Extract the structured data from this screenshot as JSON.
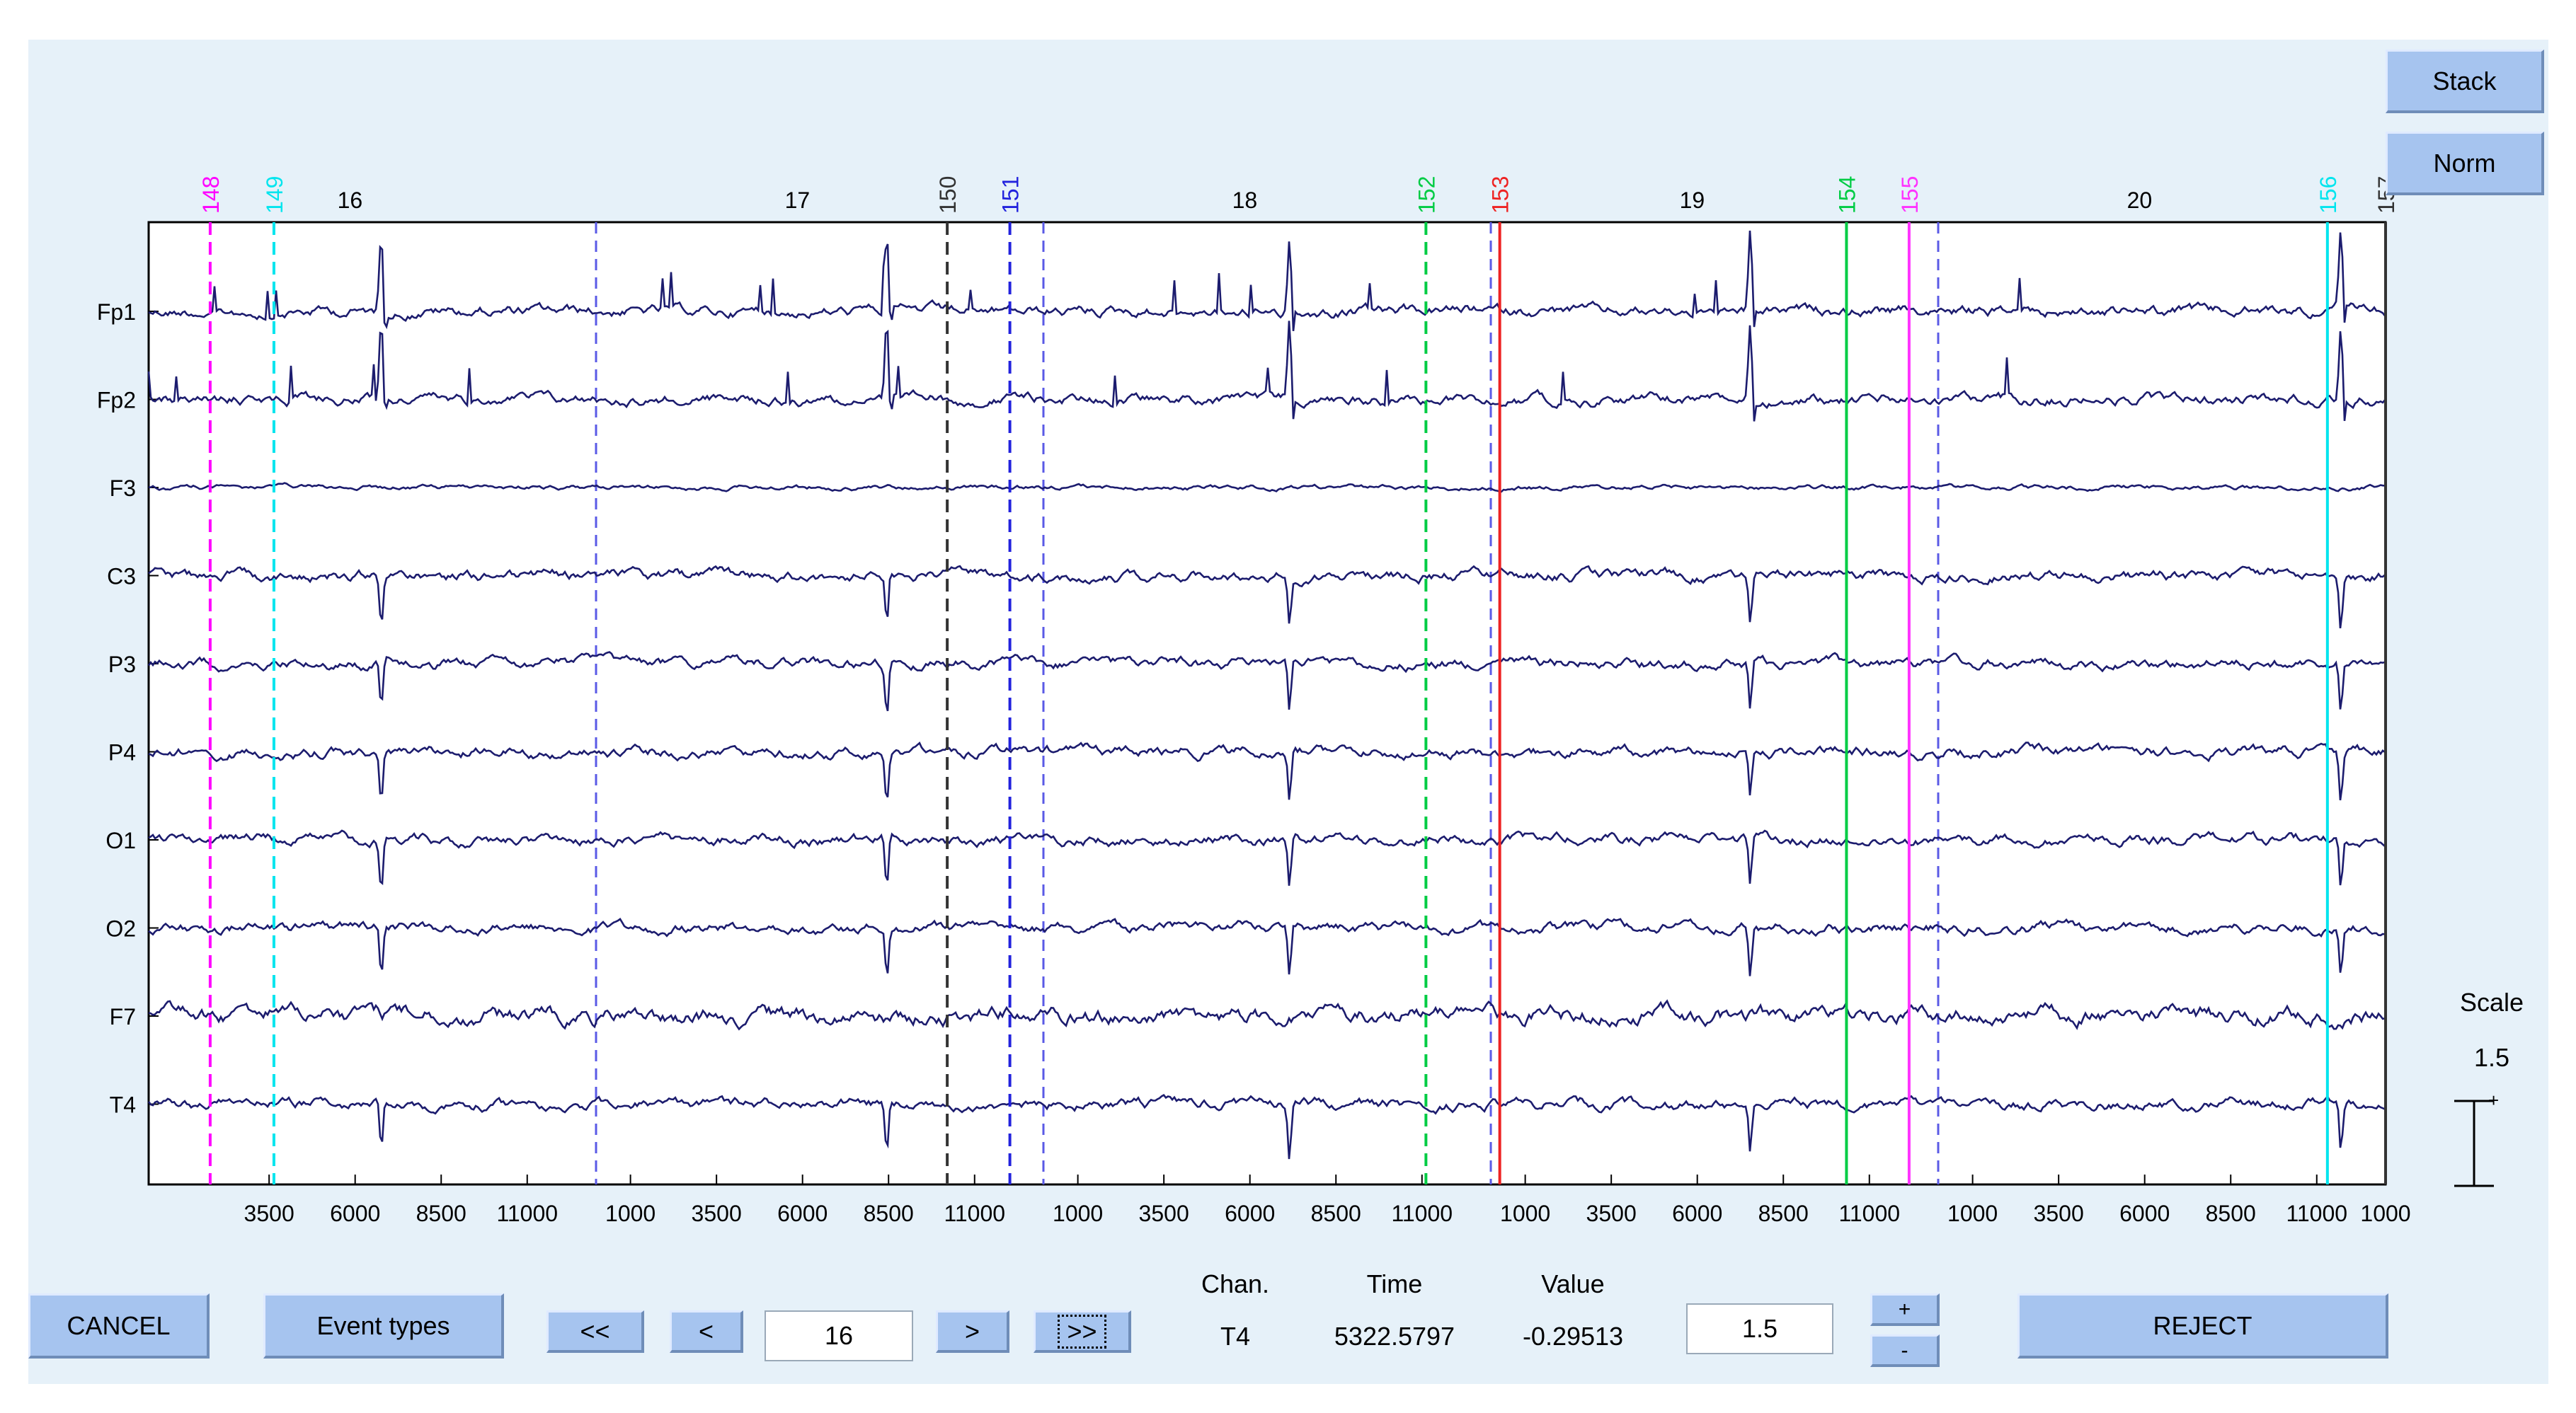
{
  "toolbar": {
    "stack_label": "Stack",
    "norm_label": "Norm",
    "scale_label": "Scale",
    "scale_value": "1.5"
  },
  "bottom_bar": {
    "cancel_label": "CANCEL",
    "event_types_label": "Event types",
    "first_label": "<<",
    "prev_label": "<",
    "epoch_value": "16",
    "next_label": ">",
    "last_label": ">>",
    "chan_header": "Chan.",
    "time_header": "Time",
    "value_header": "Value",
    "chan_value": "T4",
    "time_value": "5322.5797",
    "value_value": "-0.29513",
    "scale_input_value": "1.5",
    "plus_label": "+",
    "minus_label": "-",
    "reject_label": "REJECT"
  },
  "colors": {
    "background": "#e6f1f9",
    "trace": "#1c1c6e",
    "button": "#a6c4ef",
    "epoch_boundary": "#5a5ae6"
  },
  "chart_data": {
    "type": "line",
    "channels": [
      "Fp1",
      "Fp2",
      "F3",
      "C3",
      "P3",
      "P4",
      "O1",
      "O2",
      "F7",
      "T4"
    ],
    "epochs": [
      "16",
      "17",
      "18",
      "19",
      "20"
    ],
    "x_tick_labels_per_epoch": [
      "1000",
      "3500",
      "6000",
      "8500",
      "11000"
    ],
    "x_range_ms_per_epoch": [
      0,
      13000
    ],
    "events": [
      {
        "label": "148",
        "color": "#ff00ff",
        "style": "dashed",
        "epoch": 0,
        "pos": 0.1375
      },
      {
        "label": "149",
        "color": "#00e5ee",
        "style": "dashed",
        "epoch": 0,
        "pos": 0.28
      },
      {
        "label": "150",
        "color": "#333333",
        "style": "dashed",
        "epoch": 1,
        "pos": 0.785
      },
      {
        "label": "151",
        "color": "#2222dd",
        "style": "dashed",
        "epoch": 1,
        "pos": 0.925
      },
      {
        "label": "152",
        "color": "#00cc44",
        "style": "dashed",
        "epoch": 2,
        "pos": 0.855
      },
      {
        "label": "153",
        "color": "#ee2222",
        "style": "solid",
        "epoch": 3,
        "pos": 0.02
      },
      {
        "label": "154",
        "color": "#00cc44",
        "style": "solid",
        "epoch": 3,
        "pos": 0.795
      },
      {
        "label": "155",
        "color": "#ff33ff",
        "style": "solid",
        "epoch": 3,
        "pos": 0.935
      },
      {
        "label": "156",
        "color": "#00e5ee",
        "style": "solid",
        "epoch": 4,
        "pos": 0.87
      },
      {
        "label": "157",
        "color": "#333333",
        "style": "solid",
        "epoch": 4,
        "pos": 1.0
      }
    ]
  }
}
